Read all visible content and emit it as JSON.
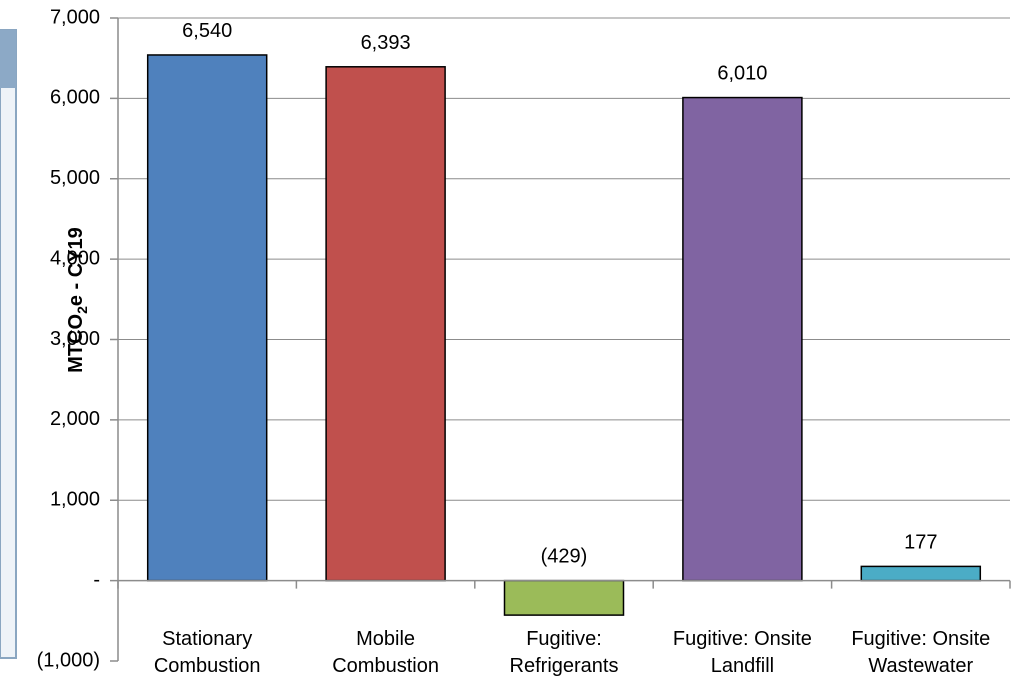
{
  "chart_data": {
    "type": "bar",
    "categories": [
      [
        "Stationary",
        "Combustion"
      ],
      [
        "Mobile",
        "Combustion"
      ],
      [
        "Fugitive:",
        "Refrigerants"
      ],
      [
        "Fugitive: Onsite",
        "Landfill"
      ],
      [
        "Fugitive: Onsite",
        "Wastewater"
      ]
    ],
    "values": [
      6540,
      6393,
      -429,
      6010,
      177
    ],
    "data_labels": [
      "6,540",
      "6,393",
      "(429)",
      "6,010",
      "177"
    ],
    "colors": [
      "#4F81BD",
      "#C0504D",
      "#9BBB59",
      "#8064A2",
      "#4BACC6"
    ],
    "ylim": [
      -1000,
      7000
    ],
    "ytick_values": [
      7000,
      6000,
      5000,
      4000,
      3000,
      2000,
      1000,
      0,
      -1000
    ],
    "ytick_labels": [
      "7,000",
      "6,000",
      "5,000",
      "4,000",
      "3,000",
      "2,000",
      "1,000",
      "-",
      "(1,000)"
    ],
    "ylabel": {
      "prefix": "MTCO",
      "subscript": "2",
      "suffix": "e - CY19"
    },
    "grid": true,
    "legend": "none"
  }
}
